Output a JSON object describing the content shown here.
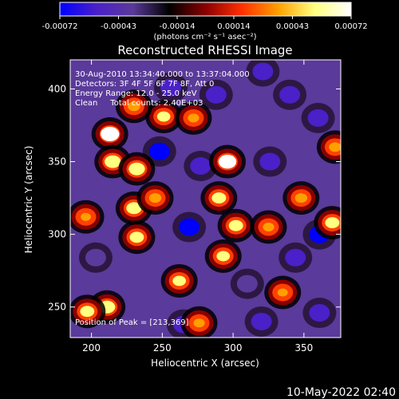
{
  "chart_data": {
    "type": "heatmap",
    "title": "Reconstructed RHESSI Image",
    "xlabel": "Heliocentric X (arcsec)",
    "ylabel": "Heliocentric Y (arcsec)",
    "xlim": [
      185,
      376
    ],
    "ylim": [
      229,
      420
    ],
    "x_ticks": [
      "200",
      "250",
      "300",
      "350"
    ],
    "x_tick_values": [
      200,
      250,
      300,
      350
    ],
    "y_ticks": [
      "250",
      "300",
      "350",
      "400"
    ],
    "y_tick_values": [
      250,
      300,
      350,
      400
    ],
    "colorbar": {
      "ticks": [
        "-0.00072",
        "-0.00043",
        "-0.00014",
        "0.00014",
        "0.00043",
        "0.00072"
      ],
      "tick_values": [
        -0.00072,
        -0.00043,
        -0.00014,
        0.00014,
        0.00043,
        0.00072
      ],
      "range": [
        -0.00072,
        0.00072
      ],
      "unit_label": "(photons cm⁻² s⁻¹ asec⁻²)",
      "stops": [
        "#0000ff",
        "#4a20c8",
        "#5a3a9a",
        "#000000",
        "#8a0000",
        "#ff3000",
        "#ffa000",
        "#ffff80",
        "#ffffff"
      ]
    },
    "annotations": [
      "30-Aug-2010 13:34:40.000 to 13:37:04.000",
      "Detectors: 3F 4F 5F 6F 7F 8F, Att 0",
      "Energy Range: 12.0 - 25.0 keV",
      "Clean     Total counts: 2.40E+03",
      "Position of Peak = [213,369]"
    ],
    "peak_position": [
      213,
      369
    ],
    "bright_sources": [
      {
        "x": 213,
        "y": 369,
        "value": 0.00072
      },
      {
        "x": 215,
        "y": 350,
        "value": 0.0006
      },
      {
        "x": 232,
        "y": 345,
        "value": 0.0006
      },
      {
        "x": 230,
        "y": 318,
        "value": 0.00055
      },
      {
        "x": 232,
        "y": 298,
        "value": 0.0005
      },
      {
        "x": 296,
        "y": 350,
        "value": 0.00068
      },
      {
        "x": 290,
        "y": 325,
        "value": 0.0005
      },
      {
        "x": 302,
        "y": 306,
        "value": 0.0005
      },
      {
        "x": 293,
        "y": 285,
        "value": 0.00045
      },
      {
        "x": 211,
        "y": 250,
        "value": 0.0006
      },
      {
        "x": 197,
        "y": 247,
        "value": 0.0005
      },
      {
        "x": 262,
        "y": 268,
        "value": 0.00045
      },
      {
        "x": 251,
        "y": 381,
        "value": 0.00045
      },
      {
        "x": 230,
        "y": 388,
        "value": 0.0004
      },
      {
        "x": 245,
        "y": 325,
        "value": 0.0004
      },
      {
        "x": 272,
        "y": 380,
        "value": 0.00035
      },
      {
        "x": 325,
        "y": 305,
        "value": 0.00035
      },
      {
        "x": 348,
        "y": 325,
        "value": 0.0004
      },
      {
        "x": 370,
        "y": 308,
        "value": 0.0005
      },
      {
        "x": 372,
        "y": 360,
        "value": 0.0004
      },
      {
        "x": 196,
        "y": 312,
        "value": 0.0003
      },
      {
        "x": 276,
        "y": 239,
        "value": 0.00035
      },
      {
        "x": 335,
        "y": 260,
        "value": 0.0003
      }
    ],
    "dark_sources": [
      {
        "x": 248,
        "y": 357,
        "value": -0.0007
      },
      {
        "x": 269,
        "y": 305,
        "value": -0.00072
      },
      {
        "x": 277,
        "y": 347,
        "value": -0.0006
      },
      {
        "x": 326,
        "y": 350,
        "value": -0.0005
      },
      {
        "x": 344,
        "y": 284,
        "value": -0.00055
      },
      {
        "x": 361,
        "y": 300,
        "value": -0.0007
      },
      {
        "x": 321,
        "y": 412,
        "value": -0.0005
      },
      {
        "x": 340,
        "y": 396,
        "value": -0.0005
      },
      {
        "x": 288,
        "y": 396,
        "value": -0.0005
      },
      {
        "x": 265,
        "y": 238,
        "value": -0.0005
      },
      {
        "x": 320,
        "y": 240,
        "value": -0.0005
      },
      {
        "x": 361,
        "y": 246,
        "value": -0.0006
      },
      {
        "x": 256,
        "y": 401,
        "value": -0.0005
      },
      {
        "x": 310,
        "y": 266,
        "value": -0.00045
      },
      {
        "x": 203,
        "y": 284,
        "value": -0.0004
      },
      {
        "x": 360,
        "y": 380,
        "value": -0.0005
      }
    ]
  },
  "footer": {
    "timestamp": "10-May-2022 02:40"
  }
}
